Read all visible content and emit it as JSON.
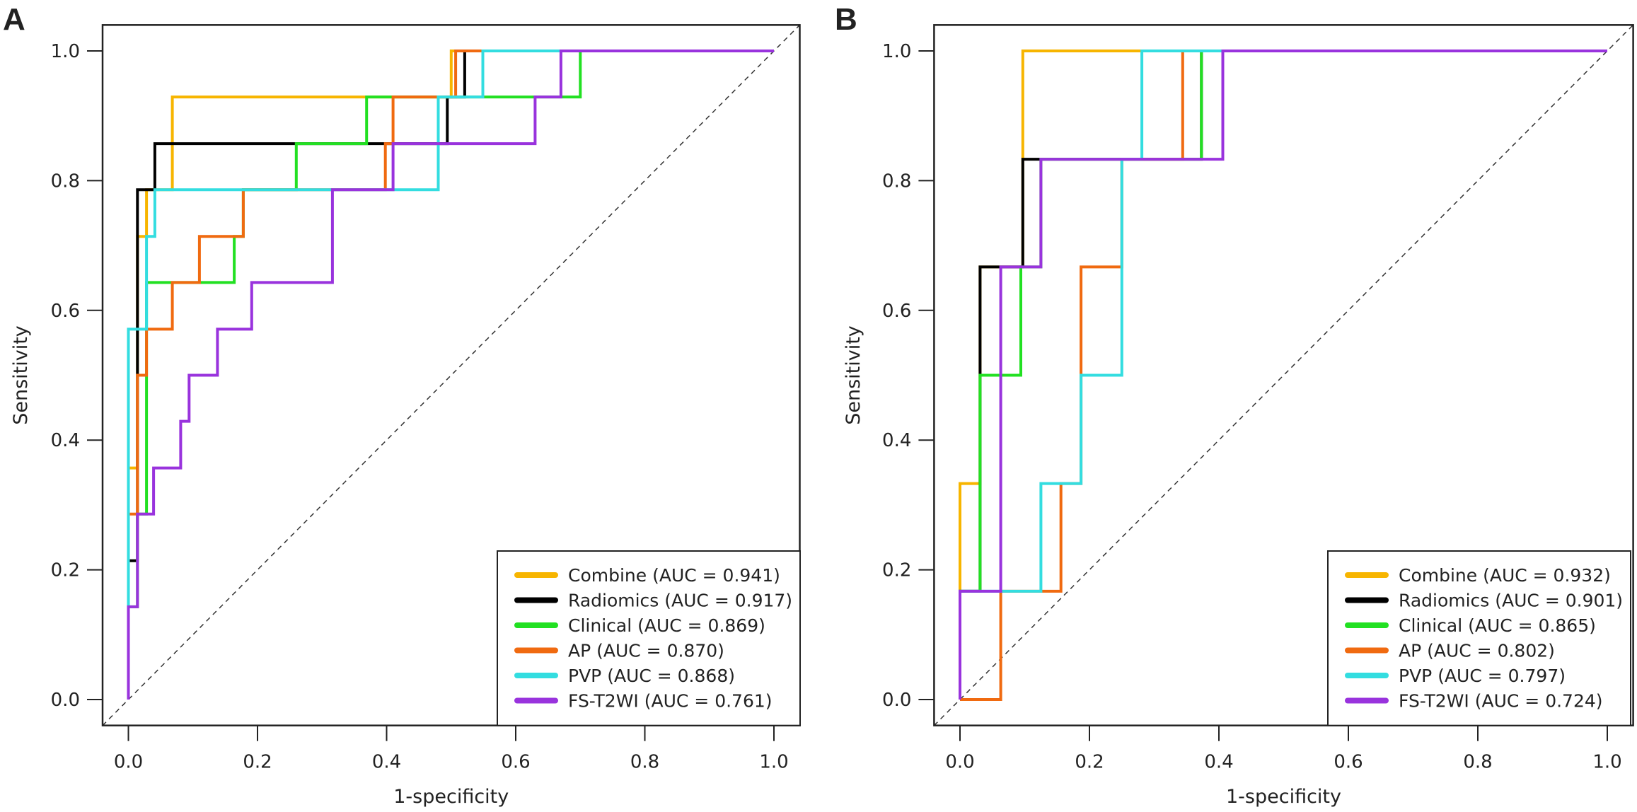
{
  "chart_data": [
    {
      "type": "line",
      "panel_label": "A",
      "xlabel": "1-specificity",
      "ylabel": "Sensitivity",
      "xlim": [
        0,
        1
      ],
      "ylim": [
        0,
        1
      ],
      "xticks": [
        "0.0",
        "0.2",
        "0.4",
        "0.6",
        "0.8",
        "1.0"
      ],
      "yticks": [
        "0.0",
        "0.2",
        "0.4",
        "0.6",
        "0.8",
        "1.0"
      ],
      "grid": false,
      "legend_position": "bottom-right",
      "reference_line": "dashed diagonal",
      "series": [
        {
          "name": "Combine (AUC = 0.941)",
          "color": "#F7B500",
          "points": [
            [
              0,
              0
            ],
            [
              0,
              0.357
            ],
            [
              0.014,
              0.357
            ],
            [
              0.014,
              0.714
            ],
            [
              0.028,
              0.714
            ],
            [
              0.028,
              0.786
            ],
            [
              0.068,
              0.786
            ],
            [
              0.068,
              0.929
            ],
            [
              0.5,
              0.929
            ],
            [
              0.5,
              1
            ],
            [
              1,
              1
            ]
          ]
        },
        {
          "name": "Radiomics (AUC = 0.917)",
          "color": "#000000",
          "points": [
            [
              0,
              0
            ],
            [
              0,
              0.214
            ],
            [
              0.014,
              0.214
            ],
            [
              0.014,
              0.786
            ],
            [
              0.041,
              0.786
            ],
            [
              0.041,
              0.857
            ],
            [
              0.494,
              0.857
            ],
            [
              0.494,
              0.929
            ],
            [
              0.521,
              0.929
            ],
            [
              0.521,
              1
            ],
            [
              1,
              1
            ]
          ]
        },
        {
          "name": "Clinical (AUC = 0.869)",
          "color": "#22E022",
          "points": [
            [
              0,
              0
            ],
            [
              0,
              0.143
            ],
            [
              0.014,
              0.143
            ],
            [
              0.014,
              0.286
            ],
            [
              0.028,
              0.286
            ],
            [
              0.028,
              0.643
            ],
            [
              0.164,
              0.643
            ],
            [
              0.164,
              0.714
            ],
            [
              0.178,
              0.714
            ],
            [
              0.178,
              0.786
            ],
            [
              0.26,
              0.786
            ],
            [
              0.26,
              0.857
            ],
            [
              0.369,
              0.857
            ],
            [
              0.369,
              0.929
            ],
            [
              0.7,
              0.929
            ],
            [
              0.7,
              1
            ],
            [
              1,
              1
            ]
          ]
        },
        {
          "name": "AP (AUC = 0.870)",
          "color": "#F06A10",
          "points": [
            [
              0,
              0
            ],
            [
              0,
              0.286
            ],
            [
              0.014,
              0.286
            ],
            [
              0.014,
              0.5
            ],
            [
              0.028,
              0.5
            ],
            [
              0.028,
              0.571
            ],
            [
              0.068,
              0.571
            ],
            [
              0.068,
              0.643
            ],
            [
              0.11,
              0.643
            ],
            [
              0.11,
              0.714
            ],
            [
              0.178,
              0.714
            ],
            [
              0.178,
              0.786
            ],
            [
              0.398,
              0.786
            ],
            [
              0.398,
              0.857
            ],
            [
              0.41,
              0.857
            ],
            [
              0.41,
              0.929
            ],
            [
              0.507,
              0.929
            ],
            [
              0.507,
              1
            ],
            [
              1,
              1
            ]
          ]
        },
        {
          "name": "PVP (AUC = 0.868)",
          "color": "#33DDE0",
          "points": [
            [
              0,
              0
            ],
            [
              0,
              0.571
            ],
            [
              0.028,
              0.571
            ],
            [
              0.028,
              0.714
            ],
            [
              0.041,
              0.714
            ],
            [
              0.041,
              0.786
            ],
            [
              0.48,
              0.786
            ],
            [
              0.48,
              0.929
            ],
            [
              0.549,
              0.929
            ],
            [
              0.549,
              1
            ],
            [
              1,
              1
            ]
          ]
        },
        {
          "name": "FS-T2WI (AUC = 0.761)",
          "color": "#9933DD",
          "points": [
            [
              0,
              0
            ],
            [
              0,
              0.143
            ],
            [
              0.014,
              0.143
            ],
            [
              0.014,
              0.286
            ],
            [
              0.039,
              0.286
            ],
            [
              0.039,
              0.357
            ],
            [
              0.081,
              0.357
            ],
            [
              0.081,
              0.429
            ],
            [
              0.094,
              0.429
            ],
            [
              0.094,
              0.5
            ],
            [
              0.138,
              0.5
            ],
            [
              0.138,
              0.571
            ],
            [
              0.191,
              0.571
            ],
            [
              0.191,
              0.643
            ],
            [
              0.316,
              0.643
            ],
            [
              0.316,
              0.786
            ],
            [
              0.41,
              0.786
            ],
            [
              0.41,
              0.857
            ],
            [
              0.63,
              0.857
            ],
            [
              0.63,
              0.929
            ],
            [
              0.67,
              0.929
            ],
            [
              0.67,
              1
            ],
            [
              1,
              1
            ]
          ]
        }
      ]
    },
    {
      "type": "line",
      "panel_label": "B",
      "xlabel": "1-specificity",
      "ylabel": "Sensitivity",
      "xlim": [
        0,
        1
      ],
      "ylim": [
        0,
        1
      ],
      "xticks": [
        "0.0",
        "0.2",
        "0.4",
        "0.6",
        "0.8",
        "1.0"
      ],
      "yticks": [
        "0.0",
        "0.2",
        "0.4",
        "0.6",
        "0.8",
        "1.0"
      ],
      "grid": false,
      "legend_position": "bottom-right",
      "reference_line": "dashed diagonal",
      "series": [
        {
          "name": "Combine (AUC = 0.932)",
          "color": "#F7B500",
          "points": [
            [
              0,
              0
            ],
            [
              0,
              0.333
            ],
            [
              0.031,
              0.333
            ],
            [
              0.031,
              0.667
            ],
            [
              0.097,
              0.667
            ],
            [
              0.097,
              1
            ],
            [
              1,
              1
            ]
          ]
        },
        {
          "name": "Radiomics (AUC = 0.901)",
          "color": "#000000",
          "points": [
            [
              0,
              0
            ],
            [
              0,
              0.167
            ],
            [
              0.031,
              0.167
            ],
            [
              0.031,
              0.667
            ],
            [
              0.097,
              0.667
            ],
            [
              0.097,
              0.833
            ],
            [
              0.373,
              0.833
            ],
            [
              0.373,
              1
            ],
            [
              1,
              1
            ]
          ]
        },
        {
          "name": "Clinical (AUC = 0.865)",
          "color": "#22E022",
          "points": [
            [
              0,
              0
            ],
            [
              0,
              0.167
            ],
            [
              0.031,
              0.167
            ],
            [
              0.031,
              0.5
            ],
            [
              0.094,
              0.5
            ],
            [
              0.094,
              0.667
            ],
            [
              0.125,
              0.667
            ],
            [
              0.125,
              0.833
            ],
            [
              0.373,
              0.833
            ],
            [
              0.373,
              1
            ],
            [
              1,
              1
            ]
          ]
        },
        {
          "name": "AP (AUC = 0.802)",
          "color": "#F06A10",
          "points": [
            [
              0,
              0
            ],
            [
              0.063,
              0
            ],
            [
              0.063,
              0.167
            ],
            [
              0.156,
              0.167
            ],
            [
              0.156,
              0.333
            ],
            [
              0.187,
              0.333
            ],
            [
              0.187,
              0.667
            ],
            [
              0.25,
              0.667
            ],
            [
              0.25,
              0.833
            ],
            [
              0.344,
              0.833
            ],
            [
              0.344,
              1
            ],
            [
              1,
              1
            ]
          ]
        },
        {
          "name": "PVP (AUC = 0.797)",
          "color": "#33DDE0",
          "points": [
            [
              0,
              0
            ],
            [
              0,
              0.167
            ],
            [
              0.125,
              0.167
            ],
            [
              0.125,
              0.333
            ],
            [
              0.187,
              0.333
            ],
            [
              0.187,
              0.5
            ],
            [
              0.25,
              0.5
            ],
            [
              0.25,
              0.833
            ],
            [
              0.281,
              0.833
            ],
            [
              0.281,
              1
            ],
            [
              1,
              1
            ]
          ]
        },
        {
          "name": "FS-T2WI (AUC = 0.724)",
          "color": "#9933DD",
          "points": [
            [
              0,
              0
            ],
            [
              0,
              0.167
            ],
            [
              0.063,
              0.167
            ],
            [
              0.063,
              0.667
            ],
            [
              0.125,
              0.667
            ],
            [
              0.125,
              0.833
            ],
            [
              0.406,
              0.833
            ],
            [
              0.406,
              1
            ],
            [
              1,
              1
            ]
          ]
        }
      ]
    }
  ]
}
